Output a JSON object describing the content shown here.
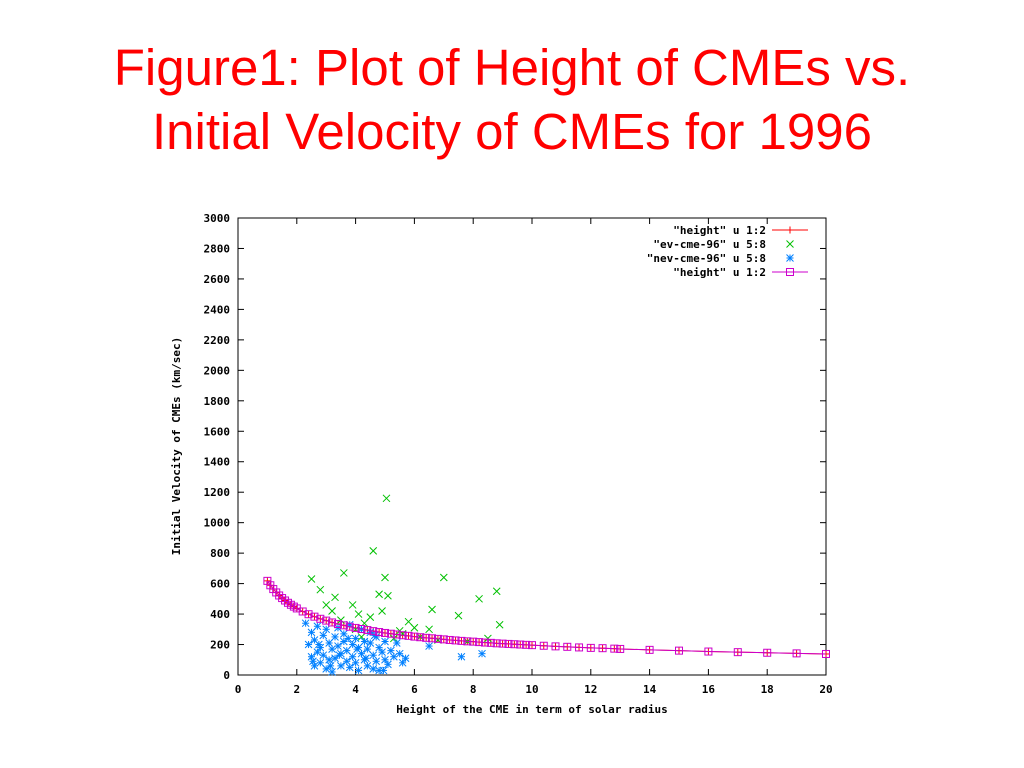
{
  "slide": {
    "title_line1": "Figure1: Plot of Height of CMEs vs.",
    "title_line2": "Initial Velocity of CMEs for 1996"
  },
  "chart_data": {
    "type": "scatter",
    "title": "",
    "xlabel": "Height of the CME in term of solar radius",
    "ylabel": "Initial Velocity of CMEs (km/sec)",
    "xlim": [
      0,
      20
    ],
    "ylim": [
      0,
      3000
    ],
    "xticks": [
      0,
      2,
      4,
      6,
      8,
      10,
      12,
      14,
      16,
      18,
      20
    ],
    "yticks": [
      0,
      200,
      400,
      600,
      800,
      1000,
      1200,
      1400,
      1600,
      1800,
      2000,
      2200,
      2400,
      2600,
      2800,
      3000
    ],
    "grid": false,
    "legend_position": "top-right",
    "colors": {
      "line_red": "#ff0000",
      "ev": "#00c000",
      "nev": "#0080ff",
      "model": "#cc00cc"
    },
    "series": [
      {
        "name": "\"height\" u 1:2",
        "style": "line-plus",
        "color": "#ff0000",
        "x": [
          1.0,
          1.1,
          1.2,
          1.3,
          1.4,
          1.5,
          1.6,
          1.7,
          1.8,
          1.9,
          2.0,
          2.2,
          2.4,
          2.6,
          2.8,
          3.0,
          3.2,
          3.4,
          3.6,
          3.8,
          4.0,
          4.2,
          4.4,
          4.6,
          4.8,
          5.0,
          5.2,
          5.4,
          5.6,
          5.8,
          6.0,
          6.2,
          6.4,
          6.6,
          6.8,
          7.0,
          7.2,
          7.4,
          7.6,
          7.8,
          8.0,
          8.2,
          8.4,
          8.6,
          8.8,
          9.0,
          9.2,
          9.4,
          9.6,
          9.8,
          10.0,
          10.4,
          10.8,
          11.2,
          11.6,
          12.0,
          12.4,
          12.8,
          13.0,
          14.0,
          15.0,
          16.0,
          17.0,
          18.0,
          19.0,
          20.0
        ],
        "y": [
          618,
          589,
          564,
          542,
          522,
          505,
          489,
          474,
          461,
          449,
          437,
          417,
          399,
          383,
          369,
          357,
          345,
          335,
          326,
          317,
          309,
          302,
          295,
          288,
          282,
          276,
          271,
          266,
          261,
          257,
          252,
          248,
          244,
          241,
          237,
          234,
          230,
          227,
          224,
          221,
          219,
          216,
          213,
          211,
          208,
          206,
          204,
          202,
          200,
          198,
          196,
          192,
          188,
          185,
          181,
          178,
          176,
          173,
          171,
          165,
          160,
          154,
          150,
          146,
          142,
          138
        ]
      },
      {
        "name": "\"ev-cme-96\" u 5:8",
        "style": "cross",
        "color": "#00c000",
        "x": [
          2.5,
          2.8,
          3.0,
          3.3,
          3.6,
          3.9,
          4.1,
          4.3,
          4.5,
          4.6,
          4.8,
          4.9,
          5.0,
          5.05,
          5.1,
          5.3,
          5.5,
          5.8,
          6.0,
          6.2,
          6.5,
          6.6,
          7.0,
          7.5,
          7.8,
          8.2,
          8.5,
          8.8,
          8.9,
          3.2,
          4.0,
          5.6,
          6.8,
          3.5,
          4.2
        ],
        "y": [
          630,
          560,
          460,
          510,
          670,
          460,
          400,
          340,
          380,
          815,
          530,
          420,
          640,
          1160,
          520,
          240,
          290,
          350,
          310,
          250,
          300,
          430,
          640,
          390,
          220,
          500,
          240,
          550,
          330,
          420,
          300,
          270,
          230,
          360,
          250
        ]
      },
      {
        "name": "\"nev-cme-96\" u 5:8",
        "style": "star",
        "color": "#0080ff",
        "x": [
          2.3,
          2.4,
          2.5,
          2.5,
          2.6,
          2.6,
          2.7,
          2.7,
          2.8,
          2.8,
          2.9,
          2.9,
          3.0,
          3.0,
          3.1,
          3.1,
          3.2,
          3.2,
          3.3,
          3.3,
          3.4,
          3.4,
          3.5,
          3.5,
          3.6,
          3.6,
          3.7,
          3.7,
          3.8,
          3.8,
          3.9,
          3.9,
          4.0,
          4.0,
          4.1,
          4.1,
          4.2,
          4.2,
          4.3,
          4.3,
          4.4,
          4.4,
          4.5,
          4.5,
          4.6,
          4.6,
          4.7,
          4.7,
          4.8,
          4.8,
          4.9,
          5.0,
          5.0,
          5.1,
          5.2,
          5.3,
          5.4,
          5.5,
          5.6,
          5.7,
          6.5,
          7.6,
          8.3,
          2.55,
          2.75,
          3.15,
          3.45,
          3.75,
          4.05,
          4.35,
          4.65,
          4.95
        ],
        "y": [
          340,
          200,
          280,
          120,
          230,
          60,
          320,
          150,
          180,
          80,
          260,
          130,
          300,
          40,
          210,
          100,
          170,
          20,
          250,
          110,
          310,
          190,
          140,
          60,
          270,
          220,
          90,
          160,
          330,
          50,
          200,
          120,
          240,
          80,
          180,
          30,
          300,
          140,
          220,
          100,
          170,
          60,
          280,
          210,
          130,
          40,
          250,
          90,
          180,
          30,
          150,
          220,
          100,
          70,
          160,
          120,
          210,
          140,
          80,
          110,
          190,
          120,
          140,
          90,
          200,
          60,
          130,
          240,
          170,
          110,
          260,
          30
        ]
      },
      {
        "name": "\"height\" u 1:2",
        "style": "line-square",
        "color": "#cc00cc",
        "x": [
          1.0,
          1.1,
          1.2,
          1.3,
          1.4,
          1.5,
          1.6,
          1.7,
          1.8,
          1.9,
          2.0,
          2.2,
          2.4,
          2.6,
          2.8,
          3.0,
          3.2,
          3.4,
          3.6,
          3.8,
          4.0,
          4.2,
          4.4,
          4.6,
          4.8,
          5.0,
          5.2,
          5.4,
          5.6,
          5.8,
          6.0,
          6.2,
          6.4,
          6.6,
          6.8,
          7.0,
          7.2,
          7.4,
          7.6,
          7.8,
          8.0,
          8.2,
          8.4,
          8.6,
          8.8,
          9.0,
          9.2,
          9.4,
          9.6,
          9.8,
          10.0,
          10.4,
          10.8,
          11.2,
          11.6,
          12.0,
          12.4,
          12.8,
          13.0,
          14.0,
          15.0,
          16.0,
          17.0,
          18.0,
          19.0,
          20.0
        ],
        "y": [
          618,
          589,
          564,
          542,
          522,
          505,
          489,
          474,
          461,
          449,
          437,
          417,
          399,
          383,
          369,
          357,
          345,
          335,
          326,
          317,
          309,
          302,
          295,
          288,
          282,
          276,
          271,
          266,
          261,
          257,
          252,
          248,
          244,
          241,
          237,
          234,
          230,
          227,
          224,
          221,
          219,
          216,
          213,
          211,
          208,
          206,
          204,
          202,
          200,
          198,
          196,
          192,
          188,
          185,
          181,
          178,
          176,
          173,
          171,
          165,
          160,
          154,
          150,
          146,
          142,
          138
        ]
      }
    ]
  }
}
